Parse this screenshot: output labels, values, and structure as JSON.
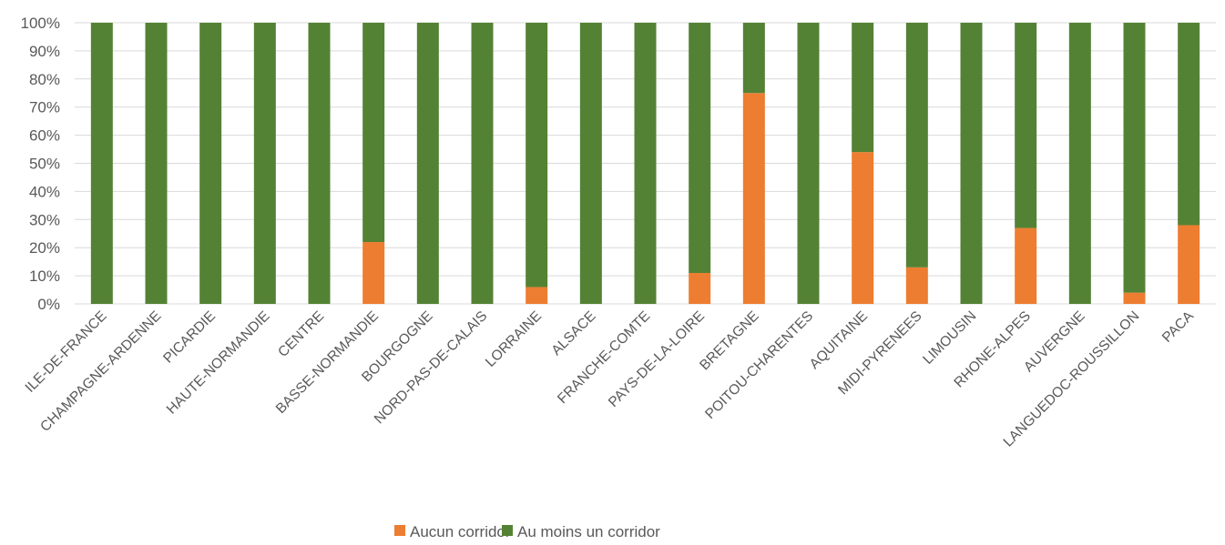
{
  "chart_data": {
    "type": "bar",
    "stacked": true,
    "categories": [
      "ILE-DE-FRANCE",
      "CHAMPAGNE-ARDENNE",
      "PICARDIE",
      "HAUTE-NORMANDIE",
      "CENTRE",
      "BASSE-NORMANDIE",
      "BOURGOGNE",
      "NORD-PAS-DE-CALAIS",
      "LORRAINE",
      "ALSACE",
      "FRANCHE-COMTE",
      "PAYS-DE-LA-LOIRE",
      "BRETAGNE",
      "POITOU-CHARENTES",
      "AQUITAINE",
      "MIDI-PYRENEES",
      "LIMOUSIN",
      "RHONE-ALPES",
      "AUVERGNE",
      "LANGUEDOC-ROUSSILLON",
      "PACA"
    ],
    "series": [
      {
        "name": "Aucun corridor",
        "color": "#ED7D31",
        "values": [
          0,
          0,
          0,
          0,
          0,
          22,
          0,
          0,
          6,
          0,
          0,
          11,
          75,
          0,
          54,
          13,
          0,
          27,
          0,
          4,
          28
        ]
      },
      {
        "name": "Au moins un corridor",
        "color": "#548235",
        "values": [
          100,
          100,
          100,
          100,
          100,
          78,
          100,
          100,
          94,
          100,
          100,
          89,
          25,
          100,
          46,
          87,
          100,
          73,
          100,
          96,
          72
        ]
      }
    ],
    "yticks": [
      "0%",
      "10%",
      "20%",
      "30%",
      "40%",
      "50%",
      "60%",
      "70%",
      "80%",
      "90%",
      "100%"
    ],
    "ylim": [
      0,
      100
    ],
    "grid": true,
    "legend_position": "bottom",
    "title": "",
    "xlabel": "",
    "ylabel": ""
  }
}
